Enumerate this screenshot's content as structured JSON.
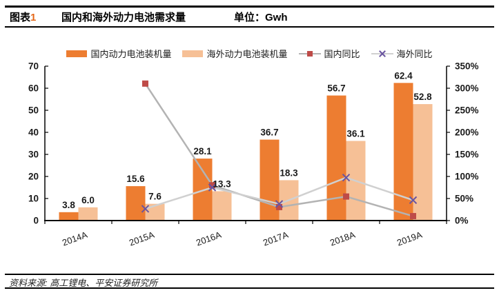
{
  "header": {
    "label_prefix": "图表",
    "label_number": "1",
    "title": "国内和海外动力电池需求量",
    "unit_label": "单位：Gwh"
  },
  "legend": {
    "items": [
      {
        "label": "国内动力电池装机量",
        "swatch": "orange-bar"
      },
      {
        "label": "海外动力电池装机量",
        "swatch": "light-orange-bar"
      },
      {
        "label": "国内同比",
        "swatch": "gray-line-red-square-marker"
      },
      {
        "label": "海外同比",
        "swatch": "gray-line-purple-x-marker"
      }
    ]
  },
  "footer": {
    "source": "资料来源: 高工锂电、平安证券研究所"
  },
  "colors": {
    "domestic_bar": "#ED7D31",
    "overseas_bar": "#F6C096",
    "domestic_line": "#B3B3B3",
    "overseas_line": "#D0D0D0",
    "domestic_marker": "#BE4B48",
    "overseas_marker": "#6A55A0",
    "figure_number": "#E56717",
    "axis": "#000000",
    "text": "#1A1A1A"
  },
  "chart_data": {
    "type": "bar",
    "subtype": "grouped bars (left axis, Gwh) with two YoY lines on secondary right axis (%)",
    "title": "国内和海外动力电池需求量",
    "unit": "Gwh",
    "categories": [
      "2014A",
      "2015A",
      "2016A",
      "2017A",
      "2018A",
      "2019A"
    ],
    "bar_series": [
      {
        "name": "国内动力电池装机量",
        "axis": "left",
        "values": [
          3.8,
          15.6,
          28.1,
          36.7,
          56.7,
          62.4
        ]
      },
      {
        "name": "海外动力电池装机量",
        "axis": "left",
        "values": [
          6.0,
          7.6,
          13.3,
          18.3,
          36.1,
          52.8
        ]
      }
    ],
    "line_series": [
      {
        "name": "国内同比",
        "axis": "right",
        "marker": "square",
        "values_pct": [
          null,
          310.5,
          80.1,
          30.6,
          54.5,
          10.1
        ]
      },
      {
        "name": "海外同比",
        "axis": "right",
        "marker": "x",
        "values_pct": [
          null,
          26.7,
          75.0,
          37.6,
          97.3,
          46.3
        ]
      }
    ],
    "left_axis": {
      "min": 0,
      "max": 70,
      "step": 10,
      "tick_labels": [
        "0",
        "10",
        "20",
        "30",
        "40",
        "50",
        "60",
        "70"
      ]
    },
    "right_axis": {
      "min": 0,
      "max": 350,
      "step": 50,
      "tick_labels": [
        "0%",
        "50%",
        "100%",
        "150%",
        "200%",
        "250%",
        "300%",
        "350%"
      ]
    },
    "grid": "off",
    "legend_position": "top",
    "bar_value_labels": "shown above bars, one decimal"
  }
}
